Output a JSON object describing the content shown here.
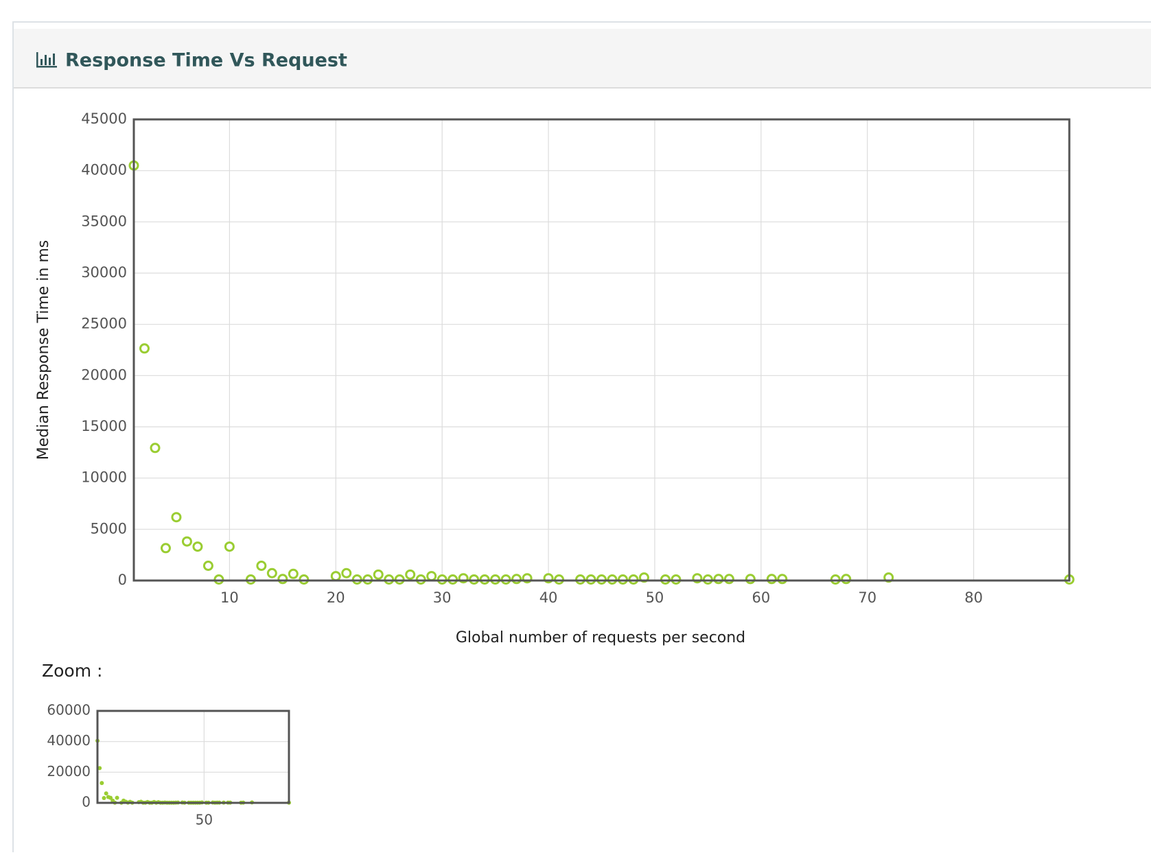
{
  "header": {
    "title": "Response Time Vs Request"
  },
  "chart_data": [
    {
      "type": "scatter",
      "x_label": "Global number of requests per second",
      "y_label": "Median Response Time in ms",
      "xlim": [
        1,
        89
      ],
      "ylim": [
        0,
        45000
      ],
      "xticks": [
        10,
        20,
        30,
        40,
        50,
        60,
        70,
        80
      ],
      "yticks": [
        0,
        5000,
        10000,
        15000,
        20000,
        25000,
        30000,
        35000,
        40000,
        45000
      ],
      "grid": true,
      "series": [
        {
          "name": null,
          "color": "#9acd32",
          "x": [
            1,
            2,
            3,
            4,
            5,
            6,
            7,
            8,
            9,
            10,
            12,
            13,
            14,
            15,
            16,
            17,
            20,
            21,
            22,
            23,
            24,
            25,
            26,
            27,
            28,
            29,
            30,
            31,
            32,
            33,
            34,
            35,
            36,
            37,
            38,
            40,
            41,
            43,
            44,
            45,
            46,
            47,
            48,
            49,
            51,
            52,
            54,
            55,
            56,
            57,
            59,
            61,
            62,
            67,
            68,
            72,
            89
          ],
          "values": [
            40500,
            22650,
            12940,
            3160,
            6180,
            3810,
            3310,
            1440,
            100,
            3310,
            100,
            1440,
            720,
            150,
            650,
            100,
            430,
            720,
            100,
            100,
            580,
            100,
            100,
            580,
            100,
            430,
            100,
            100,
            220,
            100,
            100,
            100,
            100,
            150,
            220,
            220,
            100,
            100,
            100,
            100,
            100,
            100,
            100,
            290,
            100,
            100,
            220,
            100,
            150,
            150,
            150,
            150,
            150,
            100,
            150,
            290,
            100
          ]
        }
      ]
    },
    {
      "type": "scatter-zoom",
      "label": "Zoom :",
      "xlim": [
        1,
        89
      ],
      "ylim": [
        0,
        60000
      ],
      "xticks": [
        50
      ],
      "yticks": [
        0,
        20000,
        40000,
        60000
      ],
      "grid": true
    }
  ]
}
